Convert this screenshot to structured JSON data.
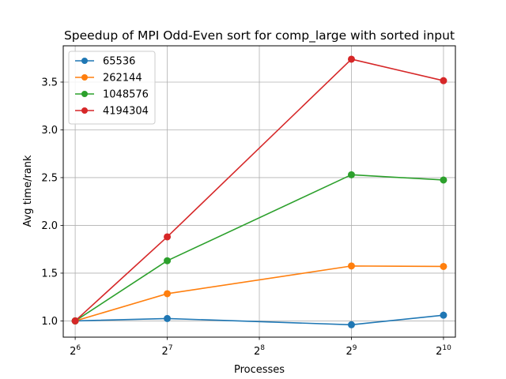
{
  "chart_data": {
    "type": "line",
    "title": "Speedup of MPI Odd-Even sort for comp_large with sorted input",
    "xlabel": "Processes",
    "ylabel": "Avg time/rank",
    "xscale": "log2",
    "x": [
      64,
      128,
      512,
      1024
    ],
    "xticks": [
      {
        "value": 64,
        "base": "2",
        "exp": "6"
      },
      {
        "value": 128,
        "base": "2",
        "exp": "7"
      },
      {
        "value": 256,
        "base": "2",
        "exp": "8"
      },
      {
        "value": 512,
        "base": "2",
        "exp": "9"
      },
      {
        "value": 1024,
        "base": "2",
        "exp": "10"
      }
    ],
    "yticks": [
      "1.0",
      "1.5",
      "2.0",
      "2.5",
      "3.0",
      "3.5"
    ],
    "xlim": [
      58.5,
      1120
    ],
    "ylim": [
      0.83,
      3.88
    ],
    "grid": true,
    "legend_position": "top-left",
    "series": [
      {
        "name": "65536",
        "color": "#1f77b4",
        "values": [
          1.0,
          1.025,
          0.96,
          1.06
        ]
      },
      {
        "name": "262144",
        "color": "#ff7f0e",
        "values": [
          1.0,
          1.285,
          1.575,
          1.57
        ]
      },
      {
        "name": "1048576",
        "color": "#2ca02c",
        "values": [
          1.0,
          1.63,
          2.53,
          2.475
        ]
      },
      {
        "name": "4194304",
        "color": "#d62728",
        "values": [
          1.0,
          1.88,
          3.74,
          3.515
        ]
      }
    ]
  }
}
